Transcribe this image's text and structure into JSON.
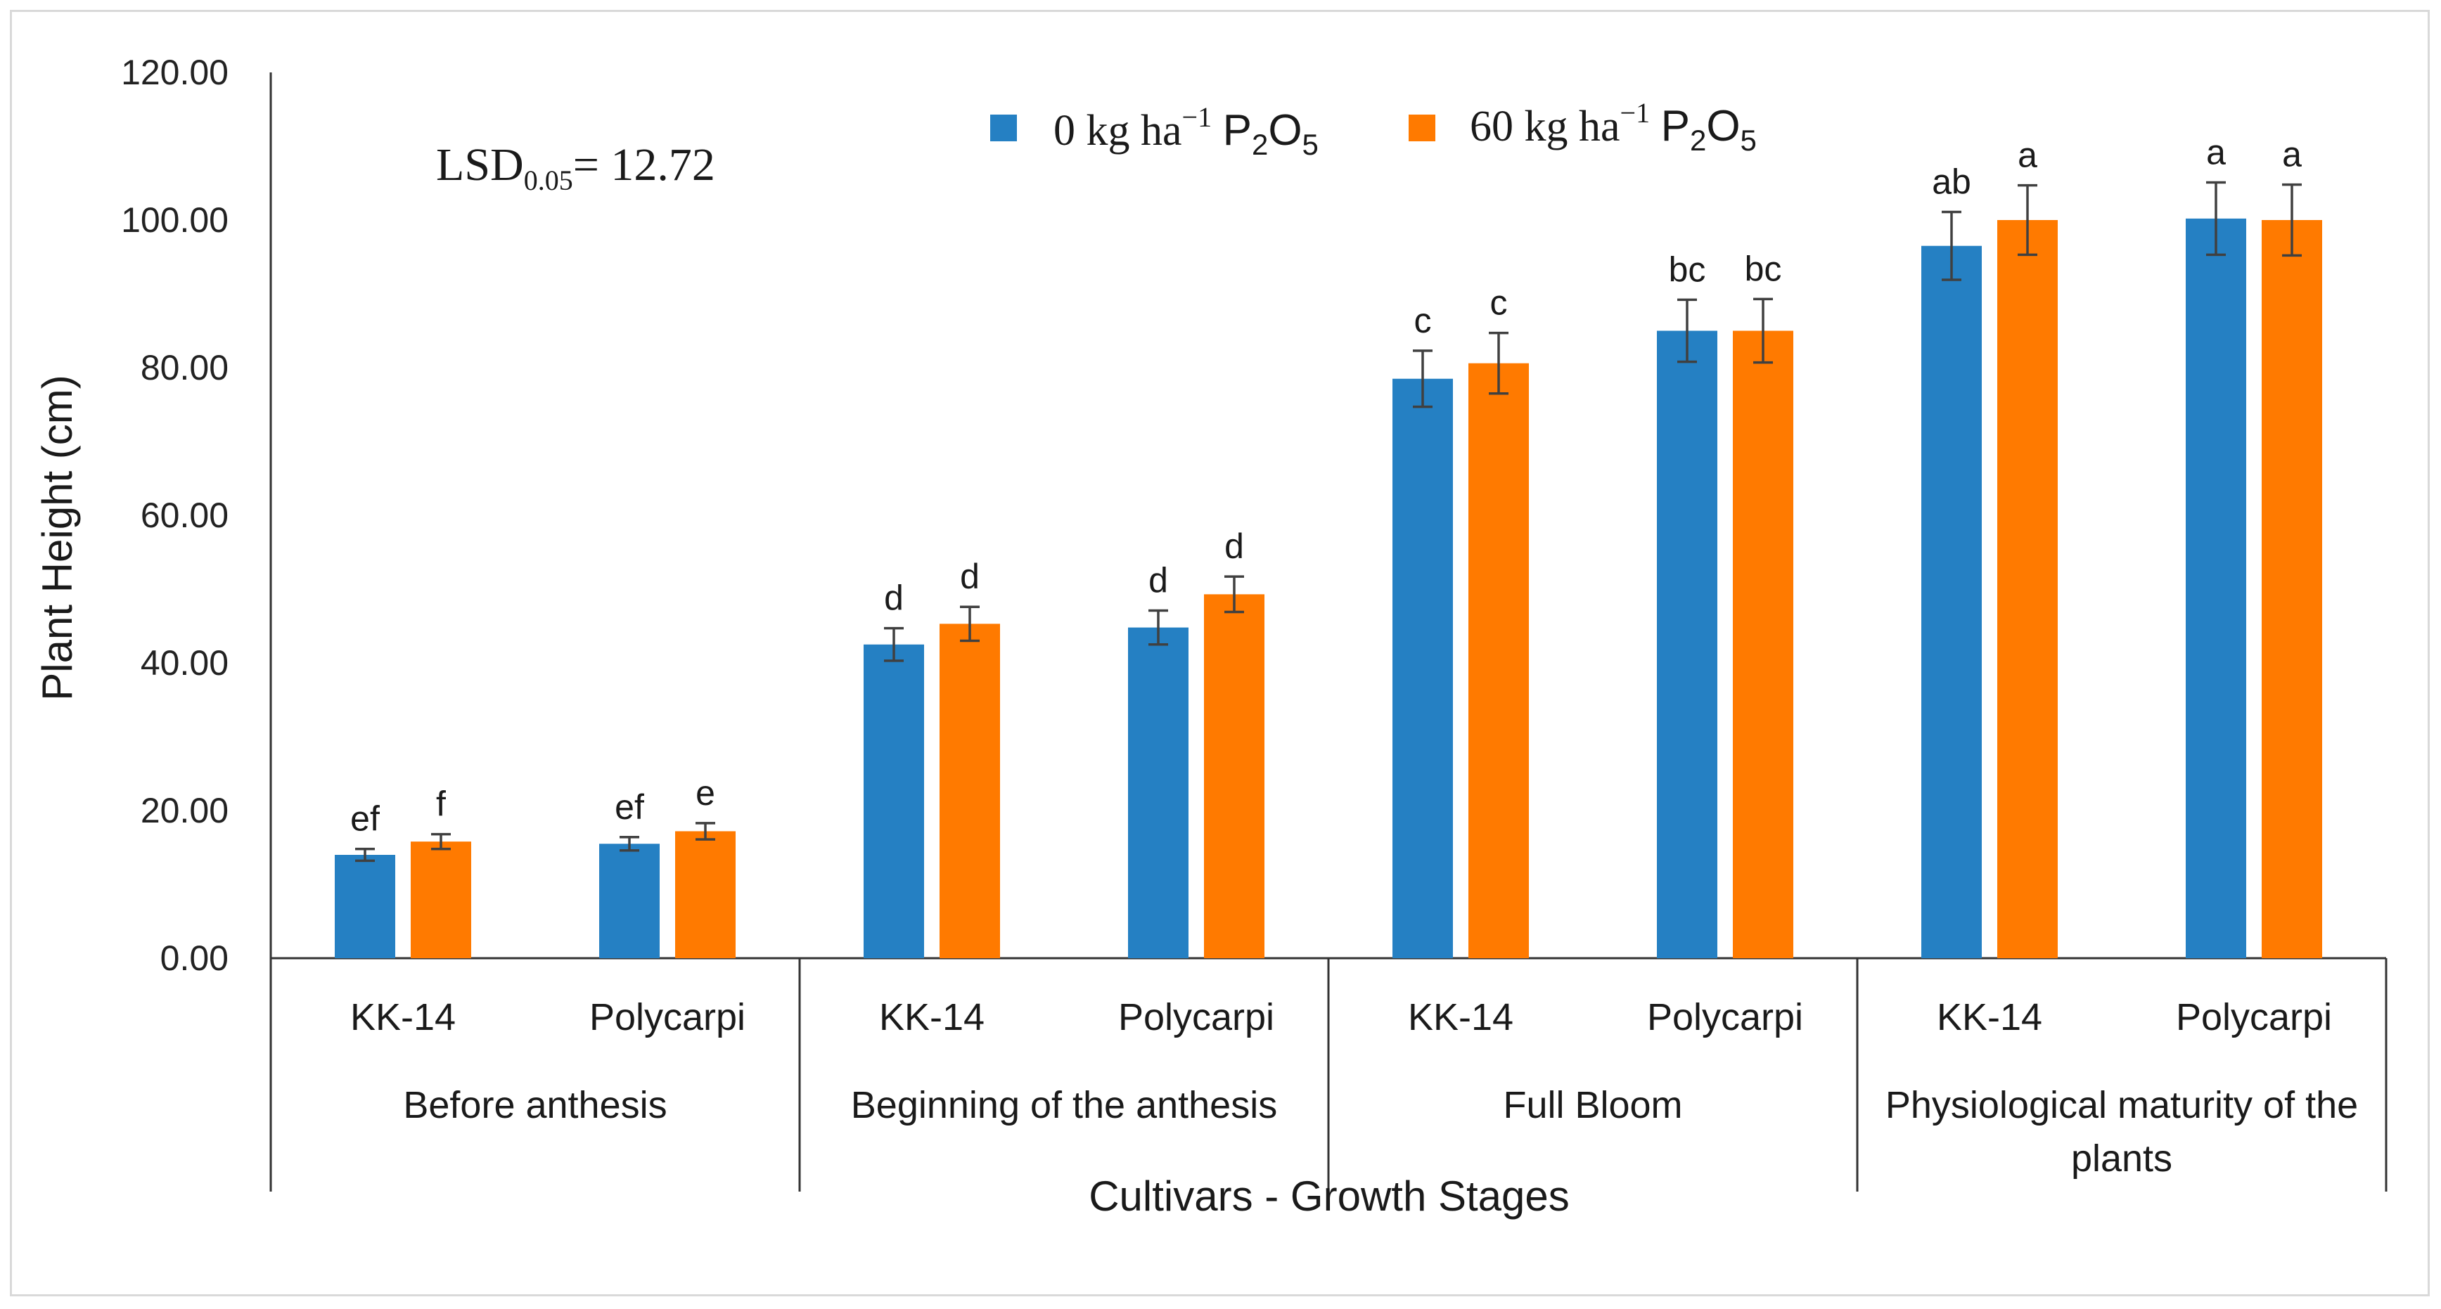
{
  "chart_data": {
    "type": "bar",
    "ylabel": "Plant Height (cm)",
    "xlabel": "Cultivars - Growth Stages",
    "ylim": [
      0,
      120
    ],
    "yticks": [
      "0.00",
      "20.00",
      "40.00",
      "60.00",
      "80.00",
      "100.00",
      "120.00"
    ],
    "annotation": {
      "lsd_label": "LSD",
      "lsd_sub": "0.05",
      "lsd_value": "= 12.72"
    },
    "legend": [
      {
        "name_pre": "0 kg ha",
        "sup": "−1",
        "chem": "P",
        "sub1": "2",
        "chem2": "O",
        "sub2": "5",
        "color": "#2580C3"
      },
      {
        "name_pre": "60 kg ha",
        "sup": "−1",
        "chem": "P",
        "sub1": "2",
        "chem2": "O",
        "sub2": "5",
        "color": "#FF7A00"
      }
    ],
    "groups": [
      {
        "stage": "Before anthesis",
        "stage_lines": [
          "Before anthesis"
        ],
        "cultivars": [
          "KK-14",
          "Polycarpi"
        ]
      },
      {
        "stage": "Beginning of the anthesis",
        "stage_lines": [
          "Beginning of the anthesis"
        ],
        "cultivars": [
          "KK-14",
          "Polycarpi"
        ]
      },
      {
        "stage": "Full Bloom",
        "stage_lines": [
          "Full Bloom"
        ],
        "cultivars": [
          "KK-14",
          "Polycarpi"
        ]
      },
      {
        "stage": "Physiological maturity of the plants",
        "stage_lines": [
          "Physiological maturity of the",
          "plants"
        ],
        "cultivars": [
          "KK-14",
          "Polycarpi"
        ]
      }
    ],
    "series": [
      {
        "name": "0 kg ha−1 P2O5",
        "color": "#2580C3",
        "values": [
          14.0,
          15.5,
          42.5,
          44.8,
          78.5,
          85.0,
          96.5,
          100.2
        ],
        "errors": [
          0.8,
          0.9,
          2.2,
          2.3,
          3.8,
          4.2,
          4.6,
          4.9
        ],
        "letters": [
          "ef",
          "ef",
          "d",
          "d",
          "c",
          "bc",
          "ab",
          "a"
        ]
      },
      {
        "name": "60 kg ha−1 P2O5",
        "color": "#FF7A00",
        "values": [
          15.8,
          17.2,
          45.3,
          49.3,
          80.6,
          85.0,
          100.0,
          100.0
        ],
        "errors": [
          1.0,
          1.1,
          2.3,
          2.4,
          4.1,
          4.3,
          4.7,
          4.8
        ],
        "letters": [
          "f",
          "e",
          "d",
          "d",
          "c",
          "bc",
          "a",
          "a"
        ]
      }
    ]
  }
}
